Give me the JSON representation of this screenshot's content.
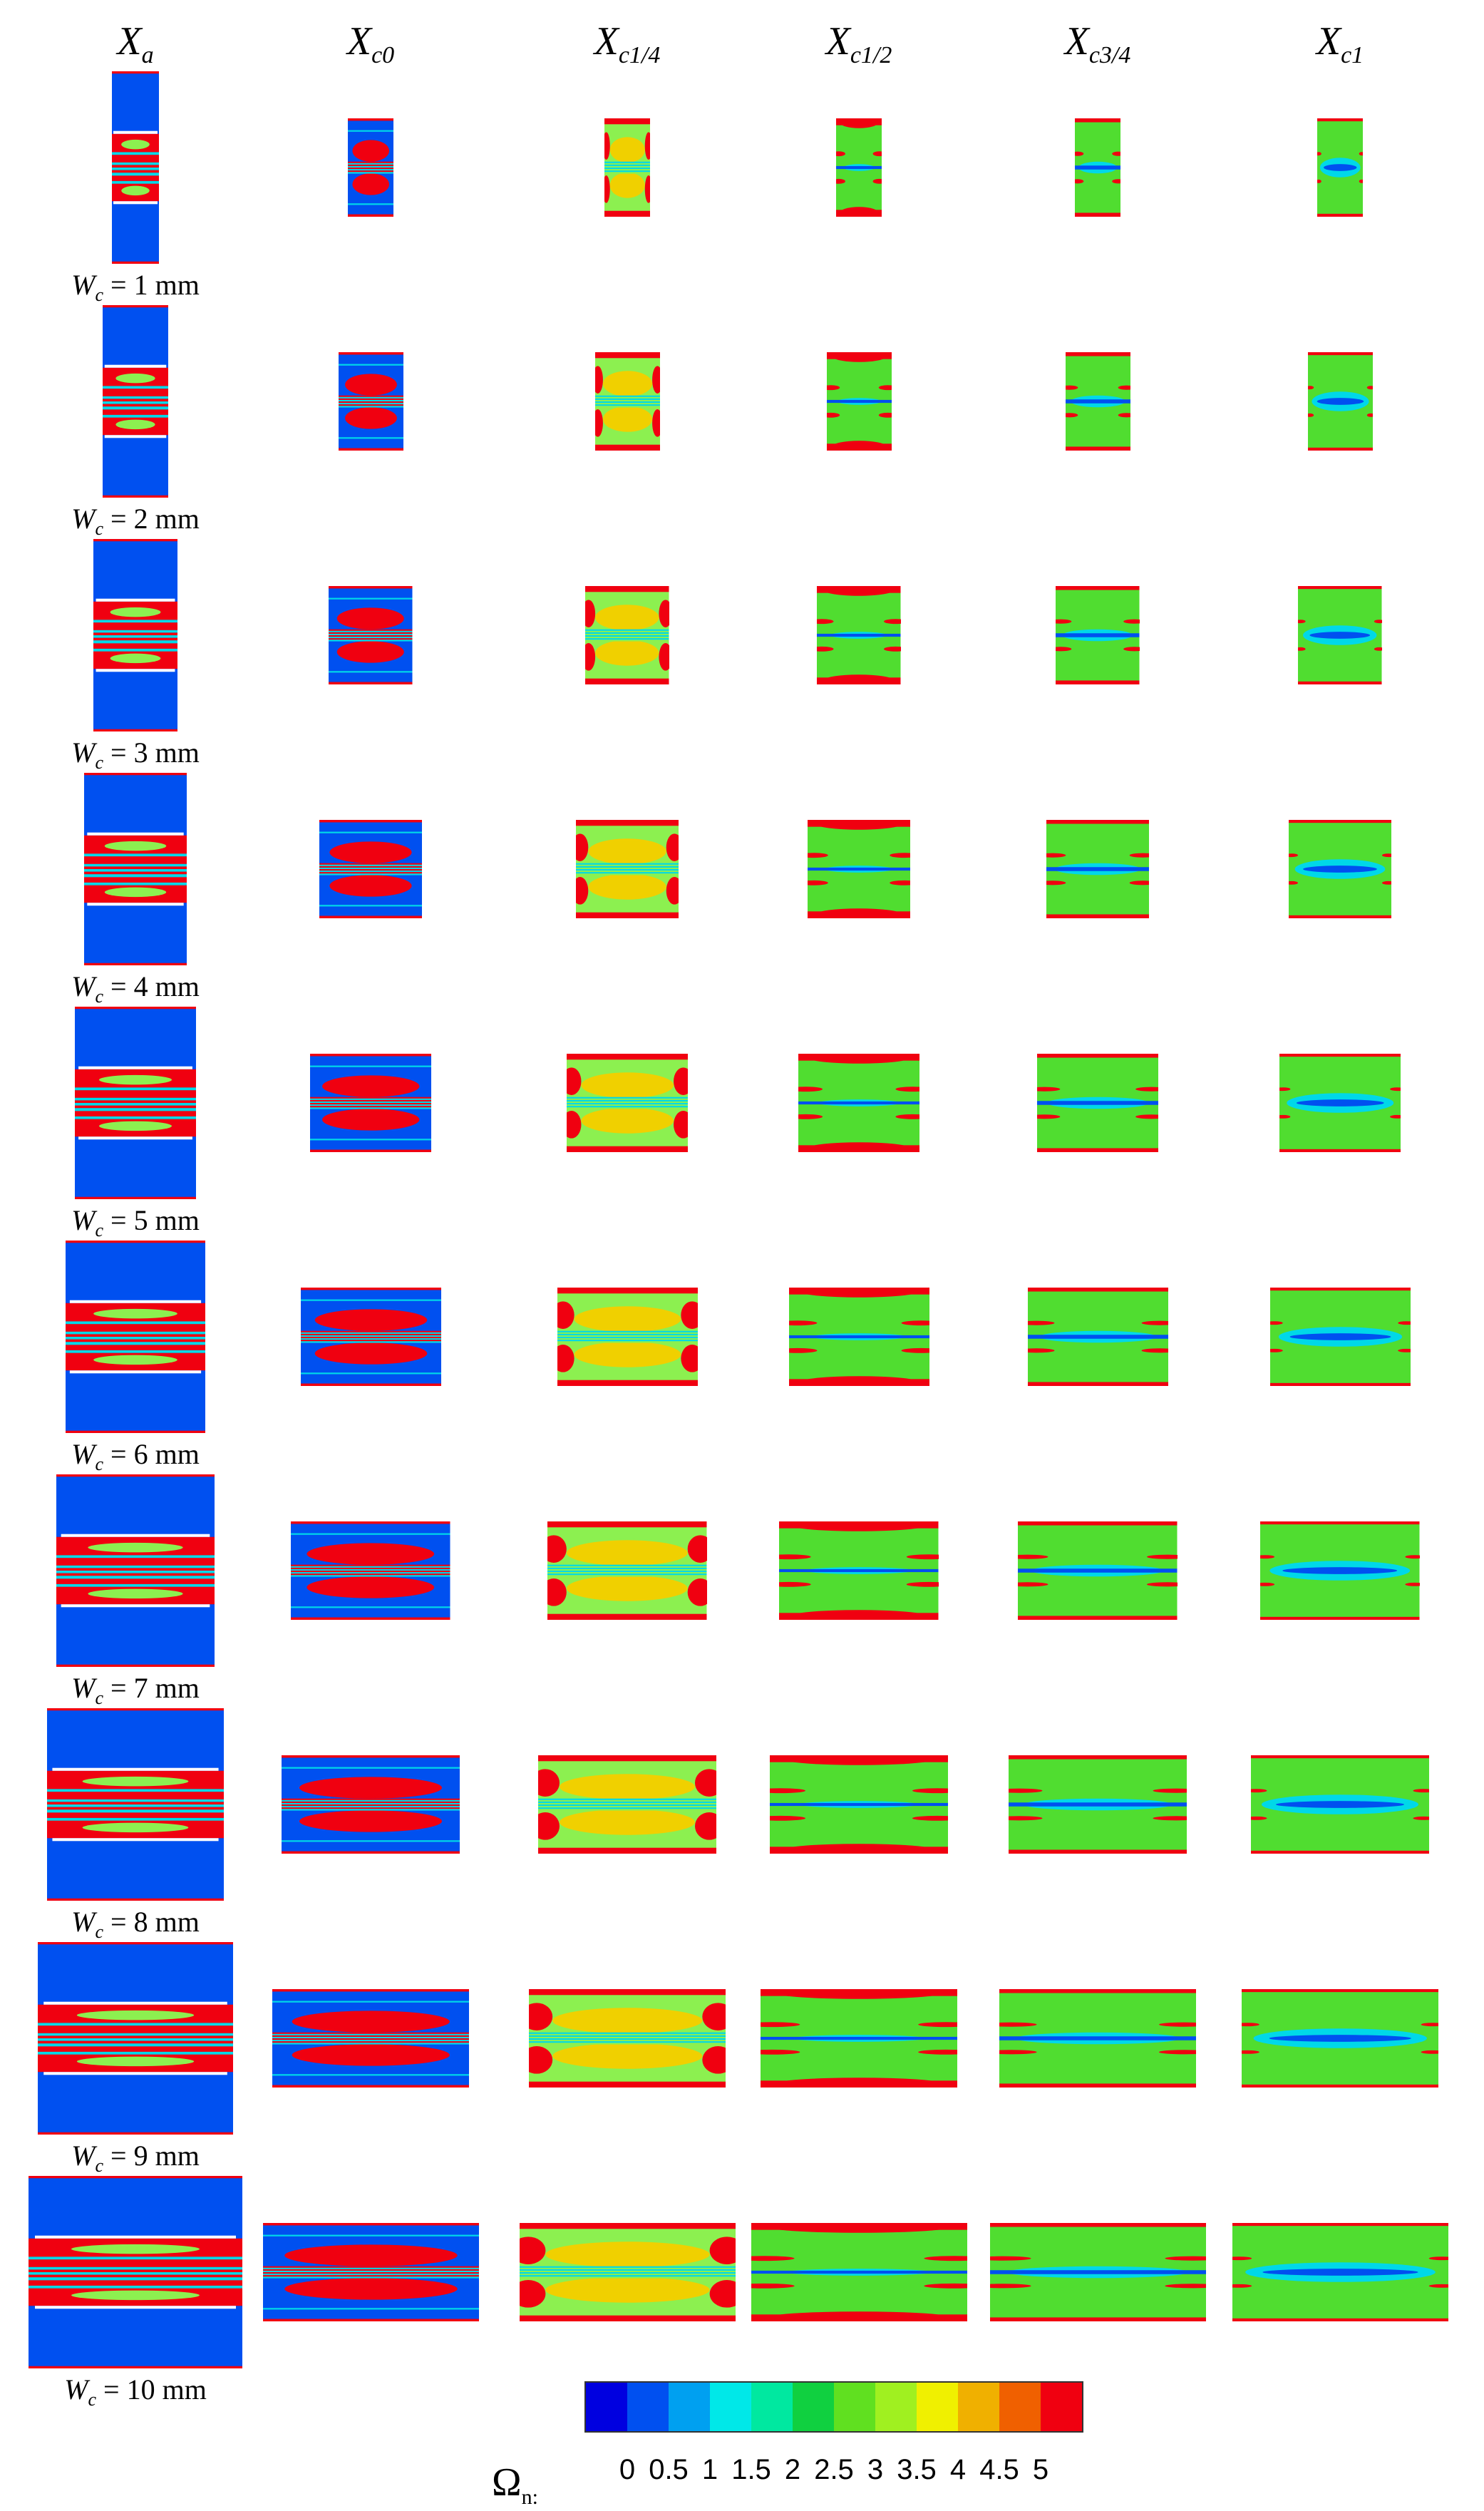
{
  "columns": [
    {
      "base": "X",
      "sub": "a"
    },
    {
      "base": "X",
      "sub": "c0"
    },
    {
      "base": "X",
      "sub": "c1/4"
    },
    {
      "base": "X",
      "sub": "c1/2"
    },
    {
      "base": "X",
      "sub": "c3/4"
    },
    {
      "base": "X",
      "sub": "c1"
    }
  ],
  "rows": [
    {
      "label_var": "W",
      "label_sub": "c",
      "label_value": "= 1 mm"
    },
    {
      "label_var": "W",
      "label_sub": "c",
      "label_value": "= 2 mm"
    },
    {
      "label_var": "W",
      "label_sub": "c",
      "label_value": "= 3 mm"
    },
    {
      "label_var": "W",
      "label_sub": "c",
      "label_value": "= 4 mm"
    },
    {
      "label_var": "W",
      "label_sub": "c",
      "label_value": "= 5 mm"
    },
    {
      "label_var": "W",
      "label_sub": "c",
      "label_value": "= 6 mm"
    },
    {
      "label_var": "W",
      "label_sub": "c",
      "label_value": "= 7 mm"
    },
    {
      "label_var": "W",
      "label_sub": "c",
      "label_value": "= 8 mm"
    },
    {
      "label_var": "W",
      "label_sub": "c",
      "label_value": "= 9 mm"
    },
    {
      "label_var": "W",
      "label_sub": "c",
      "label_value": "= 10 mm"
    }
  ],
  "legend": {
    "title_main": "Ω",
    "title_sub": "n:",
    "ticks": [
      "0",
      "0.5",
      "1",
      "1.5",
      "2",
      "2.5",
      "3",
      "3.5",
      "4",
      "4.5",
      "5"
    ],
    "colors": [
      "#0000e0",
      "#0050f0",
      "#00a0f0",
      "#00e8e8",
      "#00e8a0",
      "#10d040",
      "#60e020",
      "#a0f020",
      "#f0f000",
      "#f0b000",
      "#f06000",
      "#f00010"
    ]
  },
  "colors": {
    "red": "#f00010",
    "blue": "#0050f0",
    "green": "#50dd30",
    "lightgreen": "#8cf050",
    "yellow": "#f0d000",
    "cyan": "#00d8e8",
    "orange": "#f0a000"
  }
}
